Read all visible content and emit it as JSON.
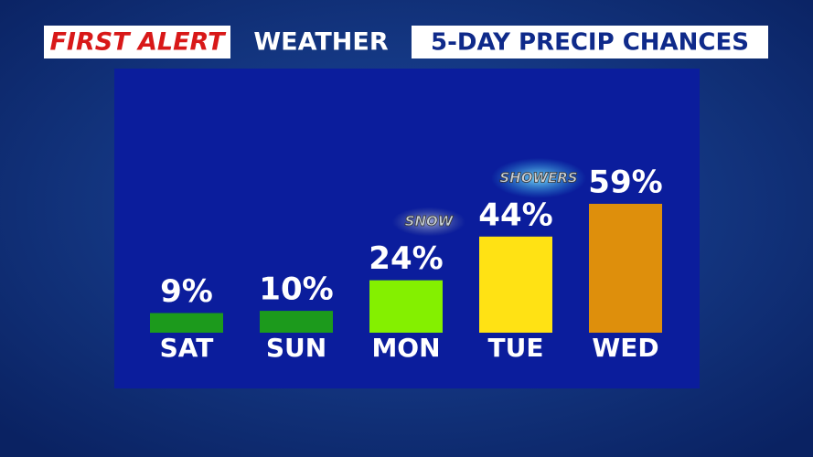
{
  "header": {
    "brand": "FIRST ALERT",
    "section": "WEATHER"
  },
  "chart_data": {
    "type": "bar",
    "title": "5-DAY PRECIP CHANCES",
    "categories": [
      "SAT",
      "SUN",
      "MON",
      "TUE",
      "WED"
    ],
    "values": [
      9,
      10,
      24,
      44,
      59
    ],
    "value_labels": [
      "9%",
      "10%",
      "24%",
      "44%",
      "59%"
    ],
    "colors": [
      "#1c9a1c",
      "#1c9a1c",
      "#84f000",
      "#ffe214",
      "#de8f0c"
    ],
    "annotations": [
      null,
      null,
      "SNOW",
      "SHOWERS",
      null
    ],
    "ylim": [
      0,
      100
    ]
  }
}
